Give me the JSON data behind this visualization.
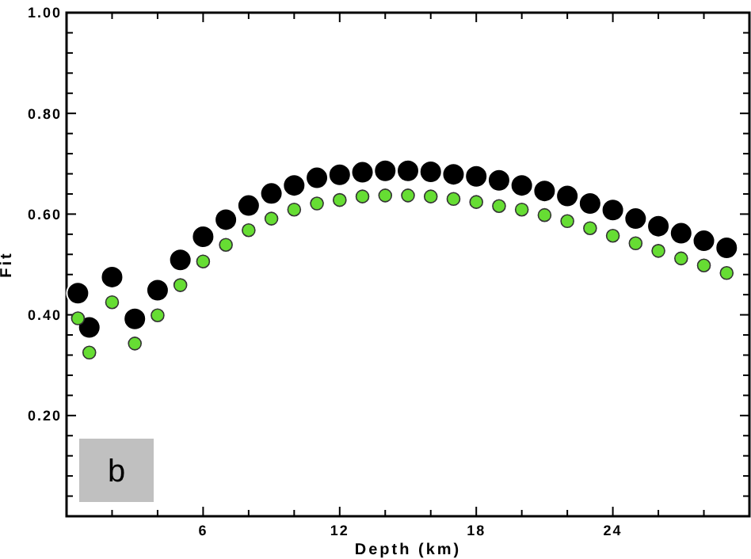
{
  "chart_data": {
    "type": "scatter",
    "xlabel": "Depth (km)",
    "ylabel": "Fit",
    "annotations": [
      "b"
    ],
    "x": [
      0.5,
      1,
      2,
      3,
      4,
      5,
      6,
      7,
      8,
      9,
      10,
      11,
      12,
      13,
      14,
      15,
      16,
      17,
      18,
      19,
      20,
      21,
      22,
      23,
      24,
      25,
      26,
      27,
      28,
      29
    ],
    "xlim": [
      0,
      30
    ],
    "xticks": [
      {
        "value": 2,
        "label": null
      },
      {
        "value": 4,
        "label": null
      },
      6,
      {
        "value": 8,
        "label": null
      },
      {
        "value": 10,
        "label": null
      },
      12,
      {
        "value": 14,
        "label": null
      },
      {
        "value": 16,
        "label": null
      },
      18,
      {
        "value": 20,
        "label": null
      },
      {
        "value": 22,
        "label": null
      },
      24,
      {
        "value": 26,
        "label": null
      },
      {
        "value": 28,
        "label": null
      }
    ],
    "ylim": [
      0,
      1
    ],
    "yticks": [
      {
        "value": 0.04,
        "label": null
      },
      {
        "value": 0.08,
        "label": null
      },
      {
        "value": 0.12,
        "label": null
      },
      {
        "value": 0.16,
        "label": null
      },
      {
        "value": 0.2,
        "label": "0.20"
      },
      {
        "value": 0.24,
        "label": null
      },
      {
        "value": 0.28,
        "label": null
      },
      {
        "value": 0.32,
        "label": null
      },
      {
        "value": 0.36,
        "label": null
      },
      {
        "value": 0.4,
        "label": "0.40"
      },
      {
        "value": 0.44,
        "label": null
      },
      {
        "value": 0.48,
        "label": null
      },
      {
        "value": 0.52,
        "label": null
      },
      {
        "value": 0.56,
        "label": null
      },
      {
        "value": 0.6,
        "label": "0.60"
      },
      {
        "value": 0.64,
        "label": null
      },
      {
        "value": 0.68,
        "label": null
      },
      {
        "value": 0.72,
        "label": null
      },
      {
        "value": 0.76,
        "label": null
      },
      {
        "value": 0.8,
        "label": "0.80"
      },
      {
        "value": 0.84,
        "label": null
      },
      {
        "value": 0.88,
        "label": null
      },
      {
        "value": 0.92,
        "label": null
      },
      {
        "value": 0.96,
        "label": null
      },
      {
        "value": 1,
        "label": "1.00"
      }
    ],
    "grid": false,
    "marker": "circle",
    "series": [
      {
        "color": "#000000",
        "values": [
          0.443,
          0.375,
          0.475,
          0.392,
          0.449,
          0.509,
          0.555,
          0.589,
          0.617,
          0.641,
          0.657,
          0.672,
          0.678,
          0.683,
          0.686,
          0.686,
          0.684,
          0.679,
          0.675,
          0.667,
          0.657,
          0.646,
          0.636,
          0.621,
          0.608,
          0.591,
          0.576,
          0.562,
          0.547,
          0.533
        ]
      },
      {
        "color": "#66dd33",
        "values": [
          0.393,
          0.325,
          0.425,
          0.343,
          0.399,
          0.459,
          0.506,
          0.539,
          0.568,
          0.591,
          0.609,
          0.621,
          0.628,
          0.635,
          0.637,
          0.637,
          0.635,
          0.63,
          0.624,
          0.616,
          0.609,
          0.598,
          0.586,
          0.572,
          0.557,
          0.542,
          0.527,
          0.512,
          0.498,
          0.483
        ]
      }
    ]
  }
}
